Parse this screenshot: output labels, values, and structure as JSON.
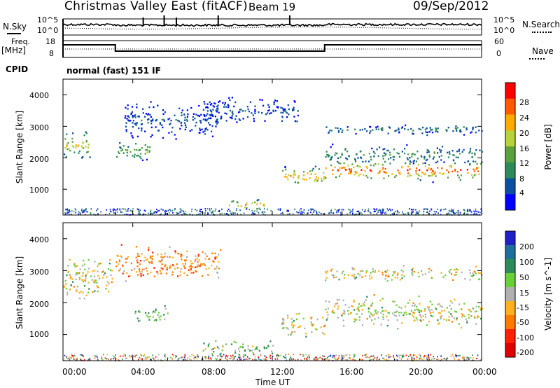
{
  "header": {
    "station_title": "Christmas Valley East (fitACF)",
    "beam_label": "Beam 19",
    "date": "09/Sep/2012"
  },
  "left_labels": {
    "nsky": "N.Sky",
    "freq": "Freq.",
    "freq_unit": "[MHz]",
    "cpid": "CPID"
  },
  "right_labels": {
    "nsearch": "N.Search",
    "nave": "Nave"
  },
  "panel_ticks": {
    "noise_left": [
      "10^5",
      "10^0"
    ],
    "noise_right": [
      "10^5",
      "10^0"
    ],
    "freq_left": [
      "18",
      "8"
    ],
    "freq_right": [
      "60",
      "0"
    ]
  },
  "cpid_text": "normal (fast) 151 IF",
  "axes": {
    "y_label": "Slant Range [km]",
    "x_label": "Time UT",
    "y_ticks": [
      "1000",
      "2000",
      "3000",
      "4000"
    ],
    "x_ticks": [
      "00:00",
      "04:00",
      "08:00",
      "12:00",
      "16:00",
      "20:00",
      "00:00"
    ]
  },
  "colors": {
    "power_scale": [
      "#0000ff",
      "#0b4fa0",
      "#2e8b57",
      "#5aa03c",
      "#b8d23a",
      "#ffaa00",
      "#ff5a00",
      "#ff0000"
    ],
    "velocity_scale": [
      "#2020c8",
      "#1f6e9c",
      "#2e8b57",
      "#6ad03a",
      "#b0b0b0",
      "#ffb020",
      "#ff7a00",
      "#ff2000",
      "#e00000"
    ]
  },
  "chart_data": [
    {
      "type": "heatmap",
      "title": "Power",
      "xlabel": "Time UT",
      "ylabel": "Slant Range [km]",
      "xlim": [
        0,
        24
      ],
      "ylim": [
        180,
        4500
      ],
      "colorbar": {
        "label": "Power [dB]",
        "ticks": [
          "4",
          "8",
          "12",
          "16",
          "20",
          "24",
          "28"
        ],
        "range": [
          0,
          32
        ]
      },
      "echo_bands": [
        {
          "t_start": 0.0,
          "t_end": 1.6,
          "r_center": 2400,
          "width": 500,
          "power": 20
        },
        {
          "t_start": 3.0,
          "t_end": 5.0,
          "r_center": 2200,
          "width": 400,
          "power": 14
        },
        {
          "t_start": 3.5,
          "t_end": 9.0,
          "r_center": 3200,
          "width": 600,
          "power": 6
        },
        {
          "t_start": 8.0,
          "t_end": 13.5,
          "r_center": 3500,
          "width": 450,
          "power": 6
        },
        {
          "t_start": 9.5,
          "t_end": 11.5,
          "r_center": 500,
          "width": 200,
          "power": 22
        },
        {
          "t_start": 12.5,
          "t_end": 15.0,
          "r_center": 1400,
          "width": 350,
          "power": 24
        },
        {
          "t_start": 15.0,
          "t_end": 24.0,
          "r_center": 1600,
          "width": 350,
          "power": 28
        },
        {
          "t_start": 15.0,
          "t_end": 24.0,
          "r_center": 2100,
          "width": 300,
          "power": 12
        },
        {
          "t_start": 15.0,
          "t_end": 24.0,
          "r_center": 2900,
          "width": 200,
          "power": 8
        }
      ]
    },
    {
      "type": "heatmap",
      "title": "Velocity",
      "xlabel": "Time UT",
      "ylabel": "Slant Range [km]",
      "xlim": [
        0,
        24
      ],
      "ylim": [
        180,
        4500
      ],
      "colorbar": {
        "label": "Velocity [m s^-1]",
        "ticks": [
          "-200",
          "-100",
          "-50",
          "-15",
          "15",
          "50",
          "100",
          "200"
        ],
        "range": [
          -250,
          250
        ]
      },
      "echo_bands": [
        {
          "t_start": 0.0,
          "t_end": 2.8,
          "r_center": 2800,
          "width": 700,
          "velocity": 0
        },
        {
          "t_start": 3.0,
          "t_end": 9.0,
          "r_center": 3200,
          "width": 600,
          "velocity": -60
        },
        {
          "t_start": 4.0,
          "t_end": 6.0,
          "r_center": 1600,
          "width": 300,
          "velocity": 40
        },
        {
          "t_start": 8.0,
          "t_end": 12.0,
          "r_center": 550,
          "width": 250,
          "velocity": 40
        },
        {
          "t_start": 12.5,
          "t_end": 15.0,
          "r_center": 1300,
          "width": 400,
          "velocity": 0
        },
        {
          "t_start": 15.0,
          "t_end": 24.0,
          "r_center": 1700,
          "width": 500,
          "velocity": 0
        },
        {
          "t_start": 15.0,
          "t_end": 24.0,
          "r_center": 2900,
          "width": 250,
          "velocity": 0
        }
      ]
    }
  ]
}
